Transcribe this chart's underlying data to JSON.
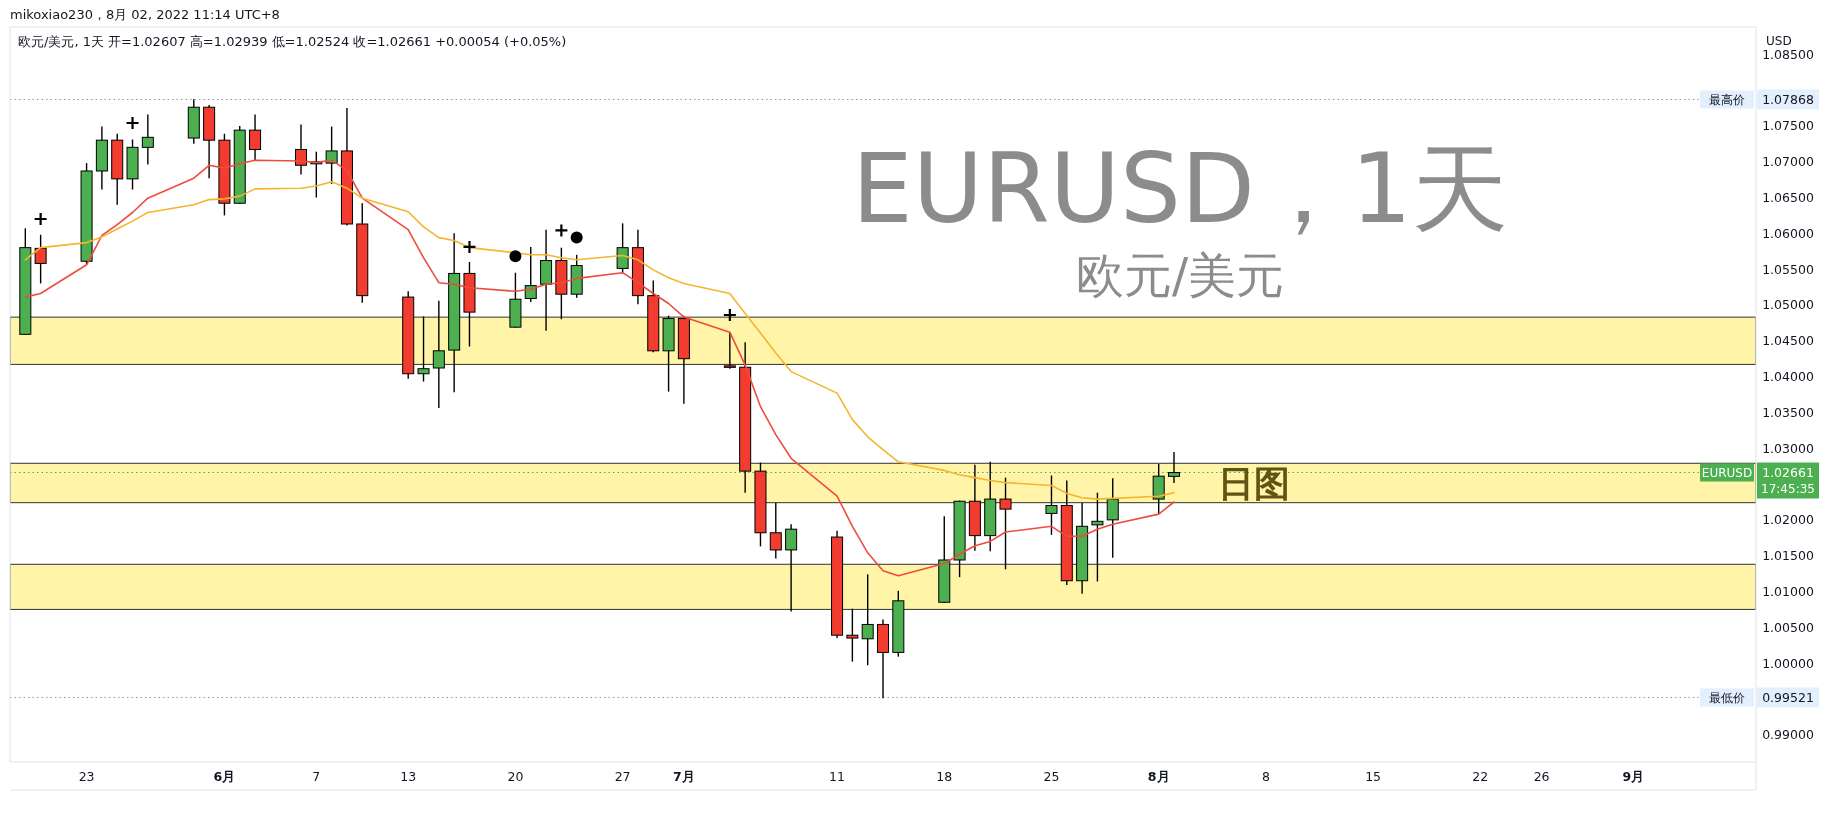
{
  "chart_data": {
    "type": "candlestick",
    "title": "EURUSD，1天",
    "subtitle": "欧元/美元",
    "ylabel": "USD",
    "x": [
      "2022-05-19",
      "2022-05-20",
      "2022-05-23",
      "2022-05-24",
      "2022-05-25",
      "2022-05-26",
      "2022-05-27",
      "2022-05-30",
      "2022-05-31",
      "2022-06-01",
      "2022-06-02",
      "2022-06-03",
      "2022-06-06",
      "2022-06-07",
      "2022-06-08",
      "2022-06-09",
      "2022-06-10",
      "2022-06-13",
      "2022-06-14",
      "2022-06-15",
      "2022-06-16",
      "2022-06-17",
      "2022-06-20",
      "2022-06-21",
      "2022-06-22",
      "2022-06-23",
      "2022-06-24",
      "2022-06-27",
      "2022-06-28",
      "2022-06-29",
      "2022-06-30",
      "2022-07-01",
      "2022-07-04",
      "2022-07-05",
      "2022-07-06",
      "2022-07-07",
      "2022-07-08",
      "2022-07-11",
      "2022-07-12",
      "2022-07-13",
      "2022-07-14",
      "2022-07-15",
      "2022-07-18",
      "2022-07-19",
      "2022-07-20",
      "2022-07-21",
      "2022-07-22",
      "2022-07-25",
      "2022-07-26",
      "2022-07-27",
      "2022-07-28",
      "2022-07-29",
      "2022-08-01",
      "2022-08-02"
    ],
    "ohlc": [
      [
        1.0459,
        1.0606,
        1.0459,
        1.058
      ],
      [
        1.0579,
        1.0597,
        1.0531,
        1.0558
      ],
      [
        1.0561,
        1.0697,
        1.0558,
        1.0687
      ],
      [
        1.0687,
        1.0748,
        1.0662,
        1.073
      ],
      [
        1.073,
        1.0738,
        1.0641,
        1.0676
      ],
      [
        1.0676,
        1.073,
        1.0662,
        1.072
      ],
      [
        1.072,
        1.0765,
        1.0697,
        1.0734
      ],
      [
        1.0733,
        1.0786,
        1.0726,
        1.0776
      ],
      [
        1.0776,
        1.0778,
        1.0678,
        1.073
      ],
      [
        1.073,
        1.0738,
        1.0626,
        1.0642
      ],
      [
        1.0642,
        1.0749,
        1.0642,
        1.0744
      ],
      [
        1.0744,
        1.0765,
        1.0702,
        1.0717
      ],
      [
        1.0717,
        1.0751,
        1.0683,
        1.0695
      ],
      [
        1.0697,
        1.0713,
        1.0651,
        1.07
      ],
      [
        1.0698,
        1.0748,
        1.067,
        1.0715
      ],
      [
        1.0715,
        1.0774,
        1.0612,
        1.0613
      ],
      [
        1.0613,
        1.0641,
        1.0504,
        1.0513
      ],
      [
        1.0511,
        1.0518,
        1.0398,
        1.0404
      ],
      [
        1.0404,
        1.0483,
        1.0394,
        1.0411
      ],
      [
        1.0412,
        1.0505,
        1.0357,
        1.0436
      ],
      [
        1.0437,
        1.0599,
        1.0379,
        1.0544
      ],
      [
        1.0544,
        1.0559,
        1.0443,
        1.049
      ],
      [
        1.0469,
        1.0544,
        1.0469,
        1.0508
      ],
      [
        1.0509,
        1.058,
        1.0505,
        1.0527
      ],
      [
        1.0529,
        1.0604,
        1.0465,
        1.0562
      ],
      [
        1.0562,
        1.0579,
        1.0481,
        1.0515
      ],
      [
        1.0515,
        1.0569,
        1.0511,
        1.0555
      ],
      [
        1.0551,
        1.0613,
        1.0545,
        1.058
      ],
      [
        1.058,
        1.0604,
        1.0502,
        1.0513
      ],
      [
        1.0513,
        1.0533,
        1.0435,
        1.0436
      ],
      [
        1.0436,
        1.0484,
        1.038,
        1.0481
      ],
      [
        1.0481,
        1.0484,
        1.0363,
        1.0425
      ],
      [
        1.0415,
        1.0461,
        1.0412,
        1.0413
      ],
      [
        1.0413,
        1.0447,
        1.0239,
        1.0268
      ],
      [
        1.0268,
        1.0279,
        1.0164,
        1.0182
      ],
      [
        1.0182,
        1.0223,
        1.0147,
        1.0158
      ],
      [
        1.0158,
        1.0193,
        1.0073,
        1.0187
      ],
      [
        1.0176,
        1.0184,
        1.0036,
        1.0039
      ],
      [
        1.0039,
        1.0075,
        1.0003,
        1.0035
      ],
      [
        1.0034,
        1.0123,
        0.9998,
        1.0054
      ],
      [
        1.0054,
        1.006,
        0.9952,
        1.0015
      ],
      [
        1.0015,
        1.01,
        1.001,
        1.0087
      ],
      [
        1.0085,
        1.0204,
        1.0085,
        1.0144
      ],
      [
        1.0144,
        1.0226,
        1.0121,
        1.0226
      ],
      [
        1.0226,
        1.0276,
        1.0158,
        1.0178
      ],
      [
        1.0178,
        1.028,
        1.0157,
        1.0229
      ],
      [
        1.0229,
        1.0258,
        1.0132,
        1.0215
      ],
      [
        1.0209,
        1.0261,
        1.018,
        1.022
      ],
      [
        1.022,
        1.0254,
        1.011,
        1.0115
      ],
      [
        1.0115,
        1.0223,
        1.0098,
        1.0191
      ],
      [
        1.0193,
        1.0237,
        1.0115,
        1.0198
      ],
      [
        1.02,
        1.0257,
        1.0148,
        1.0229
      ],
      [
        1.0229,
        1.0277,
        1.0209,
        1.0261
      ],
      [
        1.02607,
        1.02939,
        1.02524,
        1.02661
      ]
    ],
    "series": [
      {
        "type": "line",
        "color": "#ef4b3f",
        "values": [
          1.0511,
          1.0516,
          1.0556,
          1.0597,
          1.0612,
          1.0629,
          1.0649,
          1.0677,
          1.0695,
          1.0691,
          1.0697,
          1.0702,
          1.0701,
          1.0699,
          1.0702,
          1.0688,
          1.0649,
          1.0605,
          1.0566,
          1.0531,
          1.0529,
          1.0524,
          1.0519,
          1.0522,
          1.0529,
          1.0531,
          1.0537,
          1.0545,
          1.0531,
          1.0516,
          1.0502,
          1.0483,
          1.0462,
          1.0416,
          1.0358,
          1.0319,
          1.0286,
          1.0233,
          1.0191,
          1.0154,
          1.0129,
          1.0122,
          1.0139,
          1.0152,
          1.0164,
          1.017,
          1.0183,
          1.0191,
          1.0177,
          1.0177,
          1.0187,
          1.0194,
          1.0208,
          1.0225
        ]
      },
      {
        "type": "line",
        "color": "#f5b52e",
        "values": [
          1.0563,
          1.058,
          1.0587,
          1.0595,
          1.0606,
          1.0617,
          1.0629,
          1.064,
          1.0647,
          1.0648,
          1.0652,
          1.0662,
          1.0663,
          1.0666,
          1.0672,
          1.0663,
          1.0649,
          1.063,
          1.0609,
          1.0594,
          1.059,
          1.058,
          1.0573,
          1.057,
          1.057,
          1.0566,
          1.0563,
          1.0569,
          1.0563,
          1.0549,
          1.0538,
          1.053,
          1.0516,
          1.0488,
          1.0461,
          1.0433,
          1.0407,
          1.0377,
          1.034,
          1.0316,
          1.0298,
          1.0281,
          1.0269,
          1.0263,
          1.0259,
          1.0255,
          1.0252,
          1.0248,
          1.0237,
          1.0231,
          1.0229,
          1.023,
          1.0233,
          1.0238
        ]
      },
      {
        "type": "scatter",
        "marker": "cross",
        "color": "#000000",
        "x": [
          "2022-05-20",
          "2022-05-26",
          "2022-06-17",
          "2022-06-23",
          "2022-07-04"
        ],
        "values": [
          1.062,
          1.0754,
          1.0581,
          1.0604,
          1.0486
        ]
      },
      {
        "type": "scatter",
        "marker": "circle",
        "color": "#000000",
        "x": [
          "2022-06-20",
          "2022-06-24"
        ],
        "values": [
          1.0568,
          1.0594
        ]
      }
    ],
    "ref_lines": [
      {
        "axis": "y",
        "value": 1.07868,
        "label": "最高价",
        "color": "#9598a1",
        "line_style": "dotted"
      },
      {
        "axis": "y",
        "value": 0.99521,
        "label": "最低价",
        "color": "#9598a1",
        "line_style": "dotted"
      },
      {
        "axis": "y",
        "value": 1.02661,
        "label": "EURUSD",
        "color": "#4caf50",
        "line_style": "dotted"
      }
    ],
    "bands": [
      {
        "axis": "y",
        "from": 1.0417,
        "to": 1.0483,
        "color": "#fff4a8"
      },
      {
        "axis": "y",
        "from": 1.0224,
        "to": 1.0279,
        "label": "日图",
        "color": "#fff4a8"
      },
      {
        "axis": "y",
        "from": 1.0075,
        "to": 1.0138,
        "color": "#fff4a8"
      }
    ],
    "annotations": [
      "mikoxiao230，8月 02, 2022 11:14 UTC+8",
      "欧元/美元, 1天  开=1.02607  高=1.02939  低=1.02524  收=1.02661  +0.00054 (+0.05%)",
      "17:45:35",
      "1.07868",
      "0.99521",
      "1.02661"
    ],
    "xlim": [
      "2022-05-18",
      "2022-09-09"
    ],
    "xticks": [
      {
        "value": "2022-05-23",
        "label": "23"
      },
      {
        "value": "2022-06-01",
        "label": "6月"
      },
      {
        "value": "2022-06-07",
        "label": "7"
      },
      {
        "value": "2022-06-13",
        "label": "13"
      },
      {
        "value": "2022-06-20",
        "label": "20"
      },
      {
        "value": "2022-06-27",
        "label": "27"
      },
      {
        "value": "2022-07-01",
        "label": "7月"
      },
      {
        "value": "2022-07-11",
        "label": "11"
      },
      {
        "value": "2022-07-18",
        "label": "18"
      },
      {
        "value": "2022-07-25",
        "label": "25"
      },
      {
        "value": "2022-08-01",
        "label": "8月"
      },
      {
        "value": "2022-08-08",
        "label": "8"
      },
      {
        "value": "2022-08-15",
        "label": "15"
      },
      {
        "value": "2022-08-22",
        "label": "22"
      },
      {
        "value": "2022-08-26",
        "label": "26"
      },
      {
        "value": "2022-09-01",
        "label": "9月"
      }
    ],
    "ylim": [
      0.9862,
      1.0888
    ],
    "yticks": [
      {
        "value": 0.99,
        "label": "0.99000"
      },
      {
        "value": 1.0,
        "label": "1.00000"
      },
      {
        "value": 1.005,
        "label": "1.00500"
      },
      {
        "value": 1.01,
        "label": "1.01000"
      },
      {
        "value": 1.015,
        "label": "1.01500"
      },
      {
        "value": 1.02,
        "label": "1.02000"
      },
      {
        "value": 1.03,
        "label": "1.03000"
      },
      {
        "value": 1.035,
        "label": "1.03500"
      },
      {
        "value": 1.04,
        "label": "1.04000"
      },
      {
        "value": 1.045,
        "label": "1.04500"
      },
      {
        "value": 1.05,
        "label": "1.05000"
      },
      {
        "value": 1.055,
        "label": "1.05500"
      },
      {
        "value": 1.06,
        "label": "1.06000"
      },
      {
        "value": 1.065,
        "label": "1.06500"
      },
      {
        "value": 1.07,
        "label": "1.07000"
      },
      {
        "value": 1.075,
        "label": "1.07500"
      },
      {
        "value": 1.085,
        "label": "1.08500"
      }
    ]
  }
}
